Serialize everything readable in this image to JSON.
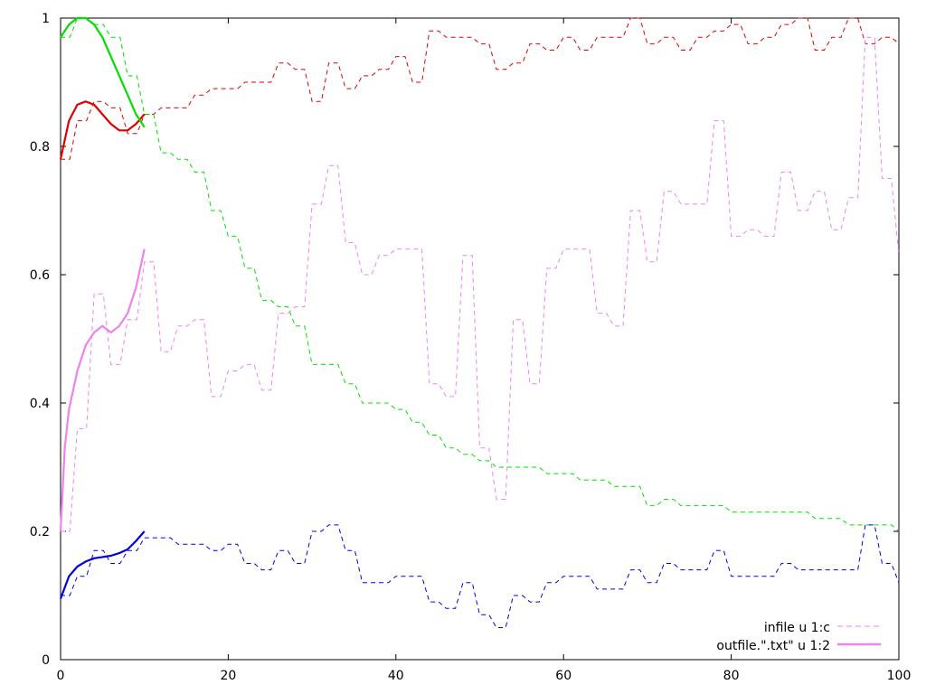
{
  "chart_data": {
    "type": "line",
    "title": "",
    "xlabel": "",
    "ylabel": "",
    "xlim": [
      0,
      100
    ],
    "ylim": [
      0,
      1
    ],
    "grid": false,
    "legend_position": "bottom-right",
    "x_ticks": [
      0,
      20,
      40,
      60,
      80,
      100
    ],
    "x_tick_labels": [
      "0",
      "20",
      "40",
      "60",
      "80",
      "100"
    ],
    "y_ticks": [
      0,
      0.2,
      0.4,
      0.6,
      0.8,
      1
    ],
    "y_tick_labels": [
      "0",
      "0.2",
      "0.4",
      "0.6",
      "0.8",
      "1"
    ],
    "legend": [
      {
        "label": "infile u 1:c",
        "style": "dashed",
        "color": "#ee82ee"
      },
      {
        "label": "outfile.\".txt\" u 1:2",
        "style": "solid",
        "color": "#ee82ee"
      }
    ],
    "series": [
      {
        "name": "red-data",
        "style": "dashed",
        "color": "#e00000",
        "x": [
          0,
          2,
          4,
          6,
          8,
          10,
          12,
          14,
          16,
          18,
          20,
          22,
          24,
          26,
          28,
          30,
          32,
          34,
          36,
          38,
          40,
          42,
          44,
          46,
          48,
          50,
          52,
          54,
          56,
          58,
          60,
          62,
          64,
          66,
          68,
          70,
          72,
          74,
          76,
          78,
          80,
          82,
          84,
          86,
          88,
          90,
          92,
          94,
          96,
          98,
          100
        ],
        "y": [
          0.78,
          0.84,
          0.87,
          0.86,
          0.82,
          0.85,
          0.86,
          0.86,
          0.88,
          0.89,
          0.89,
          0.9,
          0.9,
          0.93,
          0.92,
          0.87,
          0.93,
          0.89,
          0.91,
          0.92,
          0.94,
          0.9,
          0.98,
          0.97,
          0.97,
          0.96,
          0.92,
          0.93,
          0.96,
          0.95,
          0.97,
          0.95,
          0.97,
          0.97,
          1.0,
          0.96,
          0.97,
          0.95,
          0.97,
          0.98,
          0.99,
          0.96,
          0.97,
          0.99,
          1.0,
          0.95,
          0.97,
          1.0,
          0.96,
          0.97,
          0.96
        ]
      },
      {
        "name": "green-data",
        "style": "dashed",
        "color": "#00e000",
        "x": [
          0,
          2,
          4,
          6,
          8,
          10,
          12,
          14,
          16,
          18,
          20,
          22,
          24,
          26,
          28,
          30,
          32,
          34,
          36,
          38,
          40,
          42,
          44,
          46,
          48,
          50,
          52,
          54,
          56,
          58,
          60,
          62,
          64,
          66,
          68,
          70,
          72,
          74,
          76,
          78,
          80,
          82,
          84,
          86,
          88,
          90,
          92,
          94,
          96,
          98,
          100
        ],
        "y": [
          0.97,
          1.0,
          0.99,
          0.97,
          0.91,
          0.85,
          0.79,
          0.78,
          0.76,
          0.7,
          0.66,
          0.61,
          0.56,
          0.55,
          0.52,
          0.46,
          0.46,
          0.43,
          0.4,
          0.4,
          0.39,
          0.37,
          0.35,
          0.33,
          0.32,
          0.31,
          0.3,
          0.3,
          0.3,
          0.29,
          0.29,
          0.28,
          0.28,
          0.27,
          0.27,
          0.24,
          0.25,
          0.24,
          0.24,
          0.24,
          0.23,
          0.23,
          0.23,
          0.23,
          0.23,
          0.22,
          0.22,
          0.21,
          0.21,
          0.21,
          0.2
        ]
      },
      {
        "name": "violet-data",
        "style": "dashed",
        "color": "#ee82ee",
        "x": [
          0,
          2,
          4,
          6,
          8,
          10,
          12,
          14,
          16,
          18,
          20,
          22,
          24,
          26,
          28,
          30,
          32,
          34,
          36,
          38,
          40,
          42,
          44,
          46,
          48,
          50,
          52,
          54,
          56,
          58,
          60,
          62,
          64,
          66,
          68,
          70,
          72,
          74,
          76,
          78,
          80,
          82,
          84,
          86,
          88,
          90,
          92,
          94,
          96,
          98,
          100
        ],
        "y": [
          0.2,
          0.36,
          0.57,
          0.46,
          0.53,
          0.62,
          0.48,
          0.52,
          0.53,
          0.41,
          0.45,
          0.46,
          0.42,
          0.54,
          0.55,
          0.71,
          0.77,
          0.65,
          0.6,
          0.63,
          0.64,
          0.64,
          0.43,
          0.41,
          0.63,
          0.33,
          0.25,
          0.53,
          0.43,
          0.61,
          0.64,
          0.64,
          0.54,
          0.52,
          0.7,
          0.62,
          0.73,
          0.71,
          0.71,
          0.84,
          0.66,
          0.67,
          0.66,
          0.76,
          0.7,
          0.73,
          0.67,
          0.72,
          0.97,
          0.75,
          0.63
        ]
      },
      {
        "name": "blue-data",
        "style": "dashed",
        "color": "#0000e0",
        "x": [
          0,
          2,
          4,
          6,
          8,
          10,
          12,
          14,
          16,
          18,
          20,
          22,
          24,
          26,
          28,
          30,
          32,
          34,
          36,
          38,
          40,
          42,
          44,
          46,
          48,
          50,
          52,
          54,
          56,
          58,
          60,
          62,
          64,
          66,
          68,
          70,
          72,
          74,
          76,
          78,
          80,
          82,
          84,
          86,
          88,
          90,
          92,
          94,
          96,
          98,
          100
        ],
        "y": [
          0.1,
          0.13,
          0.17,
          0.15,
          0.17,
          0.19,
          0.19,
          0.18,
          0.18,
          0.17,
          0.18,
          0.15,
          0.14,
          0.17,
          0.15,
          0.2,
          0.21,
          0.17,
          0.12,
          0.12,
          0.13,
          0.13,
          0.09,
          0.08,
          0.12,
          0.07,
          0.05,
          0.1,
          0.09,
          0.12,
          0.13,
          0.13,
          0.11,
          0.11,
          0.14,
          0.12,
          0.15,
          0.14,
          0.14,
          0.17,
          0.13,
          0.13,
          0.13,
          0.15,
          0.14,
          0.14,
          0.14,
          0.14,
          0.21,
          0.15,
          0.12
        ]
      },
      {
        "name": "red-fit",
        "style": "solid",
        "color": "#e00000",
        "x": [
          0,
          1,
          2,
          3,
          4,
          5,
          6,
          7,
          8,
          9,
          10
        ],
        "y": [
          0.78,
          0.84,
          0.865,
          0.87,
          0.865,
          0.85,
          0.835,
          0.825,
          0.825,
          0.835,
          0.85
        ]
      },
      {
        "name": "green-fit",
        "style": "solid",
        "color": "#00e000",
        "x": [
          0,
          1,
          2,
          3,
          4,
          5,
          6,
          7,
          8,
          9,
          10
        ],
        "y": [
          0.97,
          0.99,
          1.0,
          1.0,
          0.99,
          0.97,
          0.94,
          0.91,
          0.88,
          0.85,
          0.83
        ]
      },
      {
        "name": "violet-fit",
        "style": "solid",
        "color": "#ee82ee",
        "x": [
          0,
          0.5,
          1,
          2,
          3,
          4,
          5,
          6,
          7,
          8,
          9,
          10
        ],
        "y": [
          0.2,
          0.33,
          0.39,
          0.45,
          0.49,
          0.51,
          0.52,
          0.51,
          0.52,
          0.54,
          0.58,
          0.64
        ]
      },
      {
        "name": "blue-fit",
        "style": "solid",
        "color": "#0000e0",
        "x": [
          0,
          1,
          2,
          3,
          4,
          5,
          6,
          7,
          8,
          9,
          10
        ],
        "y": [
          0.095,
          0.13,
          0.145,
          0.153,
          0.158,
          0.16,
          0.162,
          0.166,
          0.172,
          0.185,
          0.2
        ]
      }
    ]
  }
}
